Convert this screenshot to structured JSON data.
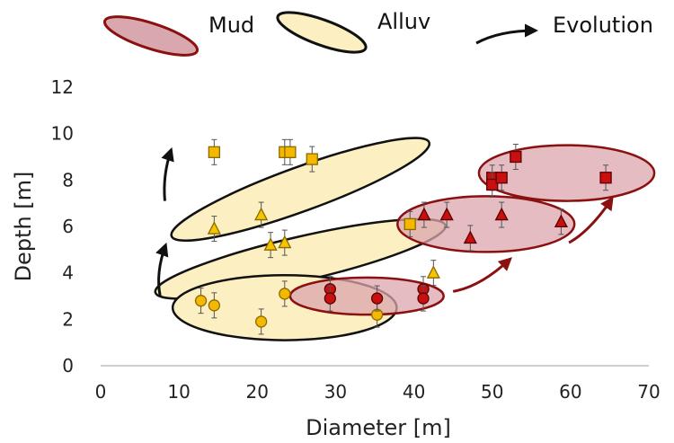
{
  "chart_data": {
    "type": "scatter",
    "xlabel": "Diameter [m]",
    "ylabel": "Depth [m]",
    "xlim": [
      0,
      70
    ],
    "ylim": [
      0,
      12
    ],
    "xticks": [
      0,
      10,
      20,
      30,
      40,
      50,
      60,
      70
    ],
    "yticks": [
      0,
      2,
      4,
      6,
      8,
      10,
      12
    ],
    "grid": false,
    "legend_position": "top",
    "legend": [
      {
        "label": "Mud",
        "kind": "ellipse",
        "fill": "#d9a8ae",
        "stroke": "#8b1010"
      },
      {
        "label": "Alluv",
        "kind": "ellipse",
        "fill": "#fcefc2",
        "stroke": "#111111"
      },
      {
        "label": "Evolution",
        "kind": "arrow",
        "stroke": "#111111"
      }
    ],
    "series": [
      {
        "group": "Alluv",
        "marker": "square",
        "color": "#f5b800",
        "points": [
          [
            14.5,
            9.2
          ],
          [
            23.5,
            9.2
          ],
          [
            24.2,
            9.2
          ],
          [
            27,
            8.9
          ],
          [
            39.5,
            6.1
          ]
        ]
      },
      {
        "group": "Alluv",
        "marker": "triangle",
        "color": "#f5c400",
        "points": [
          [
            14.5,
            5.9
          ],
          [
            20.5,
            6.5
          ],
          [
            21.7,
            5.2
          ],
          [
            23.5,
            5.3
          ],
          [
            42.5,
            4.0
          ]
        ]
      },
      {
        "group": "Alluv",
        "marker": "circle",
        "color": "#f5b800",
        "points": [
          [
            12.8,
            2.8
          ],
          [
            14.5,
            2.6
          ],
          [
            20.5,
            1.9
          ],
          [
            23.5,
            3.1
          ],
          [
            35.3,
            2.2
          ]
        ]
      },
      {
        "group": "Mud",
        "marker": "square",
        "color": "#c81010",
        "points": [
          [
            50,
            8.1
          ],
          [
            50,
            7.8
          ],
          [
            51.2,
            8.1
          ],
          [
            53,
            9.0
          ],
          [
            64.5,
            8.1
          ]
        ]
      },
      {
        "group": "Mud",
        "marker": "triangle",
        "color": "#c81010",
        "points": [
          [
            41.3,
            6.5
          ],
          [
            44.2,
            6.5
          ],
          [
            47.2,
            5.5
          ],
          [
            51.2,
            6.5
          ],
          [
            58.8,
            6.2
          ]
        ]
      },
      {
        "group": "Mud",
        "marker": "circle",
        "color": "#c81010",
        "points": [
          [
            29.3,
            3.3
          ],
          [
            29.3,
            2.9
          ],
          [
            35.3,
            2.9
          ],
          [
            41.2,
            3.3
          ],
          [
            41.2,
            2.9
          ]
        ]
      }
    ],
    "ellipses": [
      {
        "group": "Alluv",
        "center": [
          25.5,
          7.6
        ],
        "semi_major": 17.5,
        "semi_minor": 0.95,
        "angle_deg": -20,
        "fill": "#fcefc2",
        "stroke": "#111111"
      },
      {
        "group": "Alluv",
        "center": [
          25.5,
          4.6
        ],
        "semi_major": 19.0,
        "semi_minor": 0.95,
        "angle_deg": -13,
        "fill": "#fcefc2",
        "stroke": "#111111"
      },
      {
        "group": "Alluv",
        "center": [
          23.5,
          2.5
        ],
        "semi_major": 14.3,
        "semi_minor": 1.4,
        "angle_deg": 0,
        "fill": "#fcefc2",
        "stroke": "#111111"
      },
      {
        "group": "Mud",
        "center": [
          34.0,
          3.0
        ],
        "semi_major": 9.8,
        "semi_minor": 0.8,
        "angle_deg": 0,
        "fill": "#dba5ad",
        "stroke": "#8b1010",
        "opacity": 0.75
      },
      {
        "group": "Mud",
        "center": [
          49.2,
          6.1
        ],
        "semi_major": 11.3,
        "semi_minor": 1.2,
        "angle_deg": 0,
        "fill": "#dba5ad",
        "stroke": "#8b1010",
        "opacity": 0.75
      },
      {
        "group": "Mud",
        "center": [
          59.5,
          8.3
        ],
        "semi_major": 11.2,
        "semi_minor": 1.2,
        "angle_deg": 0,
        "fill": "#dba5ad",
        "stroke": "#8b1010",
        "opacity": 0.75
      }
    ],
    "arrows": [
      {
        "color": "#111111",
        "path": [
          [
            8.2,
            7.1
          ],
          [
            7.9,
            8.2
          ],
          [
            9.0,
            9.3
          ]
        ]
      },
      {
        "color": "#111111",
        "path": [
          [
            7.6,
            3.0
          ],
          [
            7.0,
            4.0
          ],
          [
            8.3,
            5.2
          ]
        ]
      },
      {
        "color": "#8b1010",
        "path": [
          [
            45.0,
            3.2
          ],
          [
            48.5,
            3.4
          ],
          [
            52.3,
            4.6
          ]
        ]
      },
      {
        "color": "#8b1010",
        "path": [
          [
            59.8,
            5.3
          ],
          [
            62.5,
            5.8
          ],
          [
            65.3,
            7.2
          ]
        ]
      }
    ]
  }
}
